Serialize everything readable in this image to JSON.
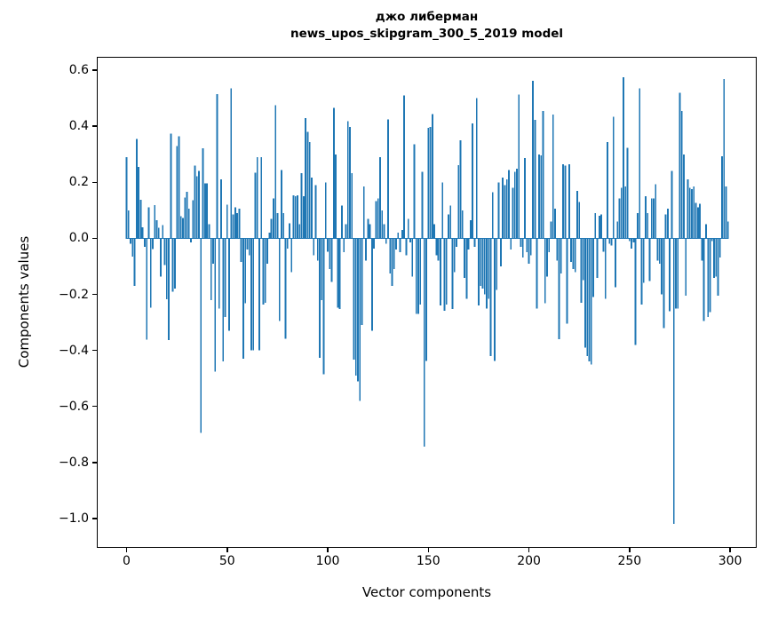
{
  "chart_data": {
    "type": "bar",
    "title_line1": "джо либерман",
    "title_line2": "news_upos_skipgram_300_5_2019 model",
    "xlabel": "Vector components",
    "ylabel": "Components values",
    "bar_color": "#1f77b4",
    "axis_color": "#000000",
    "background": "#ffffff",
    "grid": false,
    "legend": false,
    "xlim": [
      -14.8,
      313.2
    ],
    "ylim": [
      -1.105,
      0.648
    ],
    "bar_width_fraction": 0.8,
    "x_ticks": [
      {
        "label": "0",
        "value": 0
      },
      {
        "label": "50",
        "value": 50
      },
      {
        "label": "100",
        "value": 100
      },
      {
        "label": "150",
        "value": 150
      },
      {
        "label": "200",
        "value": 200
      },
      {
        "label": "250",
        "value": 250
      },
      {
        "label": "300",
        "value": 300
      }
    ],
    "y_ticks": [
      {
        "label": "0.6",
        "value": 0.6
      },
      {
        "label": "0.4",
        "value": 0.4
      },
      {
        "label": "0.2",
        "value": 0.2
      },
      {
        "label": "0.0",
        "value": 0.0
      },
      {
        "label": "−0.2",
        "value": -0.2
      },
      {
        "label": "−0.4",
        "value": -0.4
      },
      {
        "label": "−0.6",
        "value": -0.6
      },
      {
        "label": "−0.8",
        "value": -0.8
      },
      {
        "label": "−1.0",
        "value": -1.0
      }
    ],
    "values": [
      0.29,
      0.1,
      -0.02,
      -0.066,
      -0.17,
      0.355,
      0.255,
      0.138,
      0.04,
      -0.031,
      -0.361,
      0.111,
      -0.248,
      -0.039,
      0.119,
      0.065,
      0.038,
      -0.137,
      0.048,
      -0.095,
      -0.218,
      -0.363,
      0.374,
      -0.19,
      -0.179,
      0.33,
      0.365,
      0.079,
      0.073,
      0.146,
      0.166,
      0.106,
      -0.015,
      0.136,
      0.259,
      0.221,
      0.24,
      -0.695,
      0.321,
      0.196,
      0.196,
      0.05,
      -0.22,
      -0.09,
      -0.475,
      0.515,
      -0.25,
      0.21,
      -0.44,
      -0.28,
      0.12,
      -0.33,
      0.536,
      0.085,
      0.11,
      0.09,
      0.106,
      -0.085,
      -0.43,
      -0.232,
      -0.04,
      -0.06,
      -0.4,
      -0.4,
      0.235,
      0.29,
      -0.4,
      0.29,
      -0.237,
      -0.23,
      -0.09,
      0.02,
      0.07,
      0.143,
      0.476,
      0.09,
      -0.295,
      0.244,
      0.09,
      -0.359,
      -0.036,
      0.053,
      -0.12,
      0.154,
      0.15,
      0.154,
      0.05,
      0.233,
      0.15,
      0.43,
      0.38,
      0.344,
      0.217,
      -0.06,
      0.19,
      -0.08,
      -0.427,
      -0.22,
      -0.485,
      0.199,
      -0.047,
      -0.11,
      -0.155,
      0.465,
      0.3,
      -0.248,
      -0.253,
      0.117,
      -0.05,
      0.05,
      0.418,
      0.397,
      0.233,
      -0.433,
      -0.49,
      -0.51,
      -0.58,
      -0.31,
      0.185,
      -0.08,
      0.07,
      0.05,
      -0.33,
      -0.036,
      0.133,
      0.143,
      0.29,
      0.1,
      0.05,
      -0.02,
      0.425,
      -0.126,
      -0.17,
      -0.11,
      -0.04,
      0.02,
      -0.05,
      0.03,
      0.51,
      -0.06,
      0.07,
      -0.015,
      -0.137,
      0.336,
      -0.27,
      -0.27,
      -0.237,
      0.238,
      -0.744,
      -0.438,
      0.394,
      0.397,
      0.444,
      0.05,
      -0.06,
      -0.08,
      -0.24,
      0.2,
      -0.258,
      -0.237,
      0.085,
      0.117,
      -0.253,
      -0.12,
      -0.03,
      0.262,
      0.35,
      0.1,
      -0.142,
      -0.216,
      -0.04,
      0.064,
      0.41,
      -0.03,
      0.5,
      -0.24,
      -0.17,
      -0.18,
      -0.2,
      -0.25,
      -0.216,
      -0.42,
      0.164,
      -0.437,
      -0.184,
      0.2,
      -0.1,
      0.217,
      0.19,
      0.21,
      0.244,
      -0.04,
      0.18,
      0.238,
      0.249,
      0.513,
      -0.03,
      -0.068,
      0.286,
      -0.05,
      -0.09,
      -0.06,
      0.562,
      0.423,
      -0.25,
      0.3,
      0.296,
      0.455,
      -0.232,
      -0.137,
      -0.05,
      0.06,
      0.442,
      0.106,
      -0.08,
      -0.36,
      -0.126,
      0.265,
      0.26,
      -0.305,
      0.265,
      -0.085,
      -0.11,
      -0.12,
      0.17,
      0.13,
      -0.23,
      -0.15,
      -0.39,
      -0.42,
      -0.44,
      -0.45,
      -0.21,
      0.09,
      -0.142,
      0.08,
      0.085,
      -0.047,
      -0.216,
      0.344,
      -0.02,
      -0.026,
      0.434,
      -0.174,
      0.06,
      0.143,
      0.18,
      0.575,
      0.185,
      0.323,
      -0.01,
      -0.036,
      -0.015,
      -0.38,
      0.09,
      0.536,
      -0.237,
      -0.158,
      0.15,
      0.09,
      -0.153,
      0.143,
      0.143,
      0.193,
      -0.08,
      -0.09,
      -0.2,
      -0.32,
      0.085,
      0.106,
      -0.26,
      0.24,
      -1.02,
      -0.25,
      -0.25,
      0.52,
      0.455,
      0.3,
      -0.205,
      0.21,
      0.18,
      0.175,
      0.185,
      0.127,
      0.11,
      0.124,
      -0.08,
      -0.295,
      0.05,
      -0.28,
      -0.264,
      -0.01,
      -0.142,
      -0.137,
      -0.205,
      -0.068,
      0.293,
      0.568,
      0.185,
      0.06
    ]
  }
}
